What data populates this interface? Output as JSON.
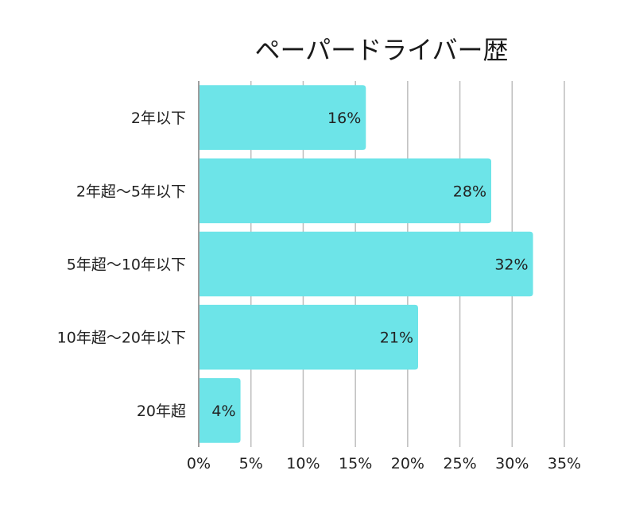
{
  "chart_data": {
    "type": "bar",
    "orientation": "horizontal",
    "title": "ペーパードライバー歴",
    "categories": [
      "2年以下",
      "2年超～5年以下",
      "5年超～10年以下",
      "10年超～20年以下",
      "20年超"
    ],
    "values": [
      16,
      28,
      32,
      21,
      4
    ],
    "value_labels": [
      "16%",
      "28%",
      "32%",
      "21%",
      "4%"
    ],
    "xlim": [
      0,
      35
    ],
    "xticks": [
      0,
      5,
      10,
      15,
      20,
      25,
      30,
      35
    ],
    "xtick_labels": [
      "0%",
      "5%",
      "10%",
      "15%",
      "20%",
      "25%",
      "30%",
      "35%"
    ],
    "xlabel": "",
    "ylabel": "",
    "grid": true,
    "bar_color": "#6de4e8"
  }
}
